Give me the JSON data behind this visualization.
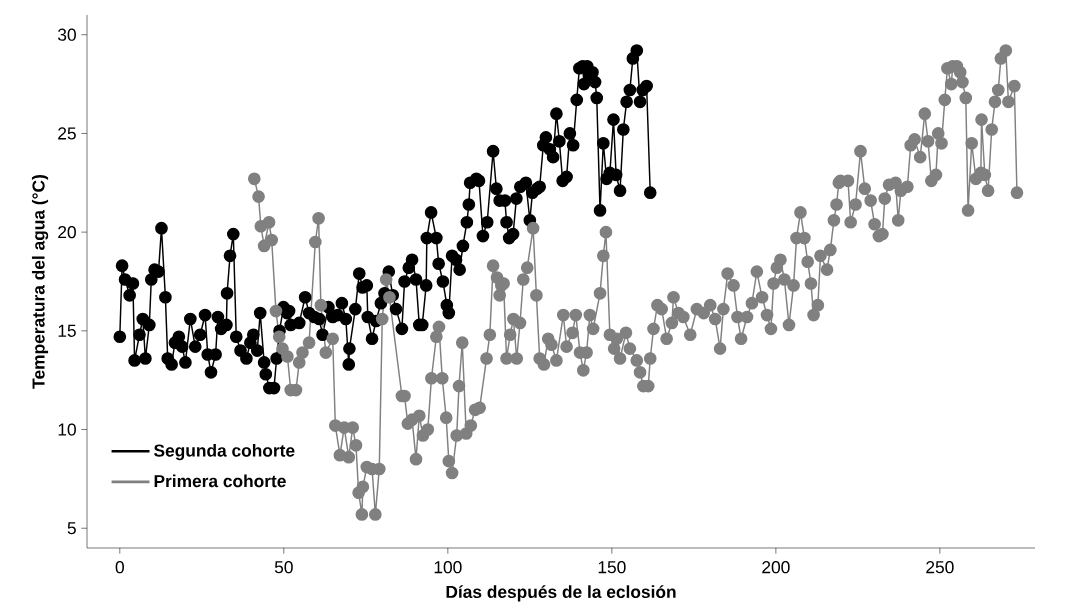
{
  "chart_data": {
    "type": "line",
    "xlabel": "Días después de la eclosión",
    "ylabel": "Temperatura del agua (°C)",
    "xlim": [
      -10,
      279
    ],
    "ylim": [
      4,
      31
    ],
    "xticks": [
      0,
      50,
      100,
      150,
      200,
      250
    ],
    "yticks": [
      5,
      10,
      15,
      20,
      25,
      30
    ],
    "grid": false,
    "legend": "bottom left",
    "marker": "circle",
    "line_style": "solid",
    "series": [
      {
        "name": "Segunda cohorte",
        "color": "#000000",
        "x": [
          0,
          0.7,
          1.6,
          3,
          4,
          4.5,
          6,
          7,
          7.8,
          9,
          9.6,
          10.6,
          11.8,
          12.7,
          13.9,
          14.6,
          15.8,
          16.8,
          18,
          19,
          20,
          21.5,
          23,
          24.5,
          26,
          26.8,
          27.8,
          29.2,
          29.9,
          30.9,
          32.5,
          32.7,
          33.6,
          34.6,
          35.5,
          36.8,
          38.6,
          39.8,
          40.7,
          41.9,
          42.8,
          44,
          44.5,
          45.6,
          47,
          47.8,
          48.7,
          49.9,
          51,
          51.6,
          52.1,
          54.7,
          56.5,
          57.7,
          59.3,
          60.8,
          61.8,
          63.6,
          64.9,
          66.4,
          67.7,
          68.9,
          69.8,
          70,
          71.8,
          73,
          74,
          75.3,
          75.6,
          76.9,
          78.1,
          79.6,
          80.7,
          82,
          83.2,
          84.2,
          86,
          86.8,
          88.1,
          89.1,
          90.3,
          91.3,
          92.2,
          93.4,
          93.6,
          94.9,
          96.5,
          97.2,
          98.5,
          99.7,
          100.3,
          101.3,
          102.5,
          103.6,
          104.6,
          105.8,
          106.4,
          106.8,
          108.7,
          109.5,
          110.7,
          112,
          113.8,
          114.8,
          115.8,
          117.4,
          117.9,
          118.7,
          119.9,
          120.9,
          122.1,
          123.8,
          125,
          125.8,
          127.2,
          128,
          129.1,
          129.9,
          131.1,
          132.1,
          133.1,
          134,
          135,
          136.2,
          137.2,
          138.2,
          139.3,
          140.1,
          141.1,
          141.5,
          142.5,
          143.1,
          144.1,
          144.9,
          145.4,
          146.4,
          147.4,
          148.4,
          149.4,
          150.5,
          151.3,
          152.5,
          153.5,
          154.5,
          155.5,
          156.4,
          157.6,
          158.6,
          159.4,
          160.6,
          161.7
        ],
        "values": [
          14.7,
          18.3,
          17.6,
          16.8,
          17.4,
          13.5,
          14.8,
          15.6,
          13.6,
          15.3,
          17.6,
          18.1,
          18.0,
          20.2,
          16.7,
          13.6,
          13.3,
          14.4,
          14.7,
          14.2,
          13.4,
          15.6,
          14.2,
          14.8,
          15.8,
          13.8,
          12.9,
          13.8,
          15.7,
          15.1,
          15.3,
          16.9,
          18.8,
          19.9,
          14.7,
          14.0,
          13.6,
          14.4,
          14.8,
          14.0,
          15.9,
          13.4,
          12.8,
          12.1,
          12.1,
          13.6,
          15.0,
          16.2,
          15.9,
          16.0,
          15.3,
          15.4,
          16.7,
          15.9,
          15.7,
          15.6,
          14.8,
          16.2,
          15.7,
          15.8,
          16.4,
          15.6,
          13.3,
          14.1,
          16.1,
          17.9,
          17.2,
          17.3,
          15.7,
          14.6,
          15.5,
          16.4,
          16.9,
          18.0,
          16.8,
          16.1,
          15.1,
          17.5,
          18.2,
          18.6,
          17.6,
          15.3,
          15.3,
          17.3,
          19.7,
          21.0,
          19.7,
          18.4,
          17.5,
          16.3,
          15.9,
          18.8,
          18.6,
          18.1,
          19.3,
          20.5,
          21.4,
          22.5,
          22.7,
          22.6,
          19.8,
          20.5,
          24.1,
          22.2,
          21.6,
          21.6,
          20.5,
          19.7,
          19.9,
          21.7,
          22.3,
          22.5,
          20.6,
          22.0,
          22.2,
          22.3,
          24.4,
          24.8,
          24.2,
          23.8,
          26.0,
          24.6,
          22.6,
          22.8,
          25.0,
          24.4,
          26.7,
          28.3,
          28.4,
          27.5,
          28.4,
          28.0,
          28.1,
          27.6,
          26.8,
          21.1,
          24.5,
          22.7,
          23.0,
          25.7,
          22.9,
          22.1,
          25.2,
          26.6,
          27.2,
          28.8,
          29.2,
          26.6,
          27.2,
          27.4,
          22.0
        ]
      },
      {
        "name": "Primera cohorte",
        "color": "#808080",
        "x": [
          41,
          42.3,
          43,
          44,
          45.5,
          46.3,
          47.6,
          48.6,
          49.6,
          51.1,
          52.1,
          53.7,
          54.7,
          55.7,
          57.7,
          59.6,
          60.6,
          61.3,
          62.8,
          64.9,
          65.7,
          67.1,
          68.4,
          69.8,
          71,
          72,
          72.8,
          73.8,
          74.1,
          75.3,
          76.9,
          77.9,
          79.1,
          80,
          81.2,
          82.2,
          86,
          86.8,
          87.8,
          89.1,
          90.3,
          91.3,
          92.4,
          93.9,
          95,
          96.5,
          97.3,
          98.3,
          99.5,
          100.3,
          101.3,
          102.7,
          103.4,
          104.4,
          105.6,
          107,
          108.3,
          109.7,
          111.8,
          112.8,
          113.8,
          115,
          115.8,
          116.3,
          117,
          117.9,
          119,
          120,
          121,
          122,
          123,
          124.2,
          126,
          127,
          128,
          129.3,
          130.6,
          131.6,
          133.1,
          135.2,
          136.2,
          138,
          139,
          140.3,
          141.3,
          142.3,
          143.3,
          144.3,
          146.4,
          147.4,
          148.2,
          149.4,
          150.7,
          151.5,
          152.5,
          154.3,
          155.5,
          157.6,
          158.6,
          159.6,
          161.1,
          161.7,
          162.7,
          163.9,
          165.2,
          166.7,
          168.3,
          168.8,
          170.3,
          171.8,
          173.9,
          175.9,
          178,
          180,
          181.5,
          183,
          184,
          185.3,
          187.1,
          188.3,
          189.4,
          191.2,
          192.7,
          194.2,
          195.8,
          197.3,
          198.5,
          199.3,
          200.3,
          201.4,
          202.6,
          204,
          205.4,
          206.3,
          207.5,
          208.7,
          209.7,
          210.7,
          211.5,
          212.8,
          213.6,
          215.6,
          216.6,
          217.7,
          218.5,
          219.2,
          219.7,
          222,
          222.8,
          224.3,
          225.8,
          227.1,
          228.9,
          230.1,
          231.4,
          232.5,
          233.2,
          234.5,
          236.5,
          237.3,
          238.1,
          240.1,
          241.1,
          242.3,
          244,
          245.4,
          246.4,
          247.4,
          248.8,
          249.5,
          250.5,
          251.5,
          252.3,
          253.5,
          253.9,
          255.2,
          256.2,
          256.9,
          257.9,
          258.6,
          259.7,
          261,
          262.5,
          262.7,
          263.7,
          264.7,
          265.8,
          266.8,
          267.8,
          268.6,
          270.1,
          270.9,
          272.7,
          273.5
        ],
        "values": [
          22.7,
          21.8,
          20.3,
          19.3,
          20.5,
          19.6,
          16.0,
          14.7,
          14.1,
          13.7,
          12.0,
          12.0,
          13.4,
          13.9,
          14.4,
          19.5,
          20.7,
          16.3,
          13.9,
          14.6,
          10.2,
          8.7,
          10.1,
          8.6,
          10.1,
          9.2,
          6.8,
          5.7,
          7.1,
          8.1,
          8.0,
          5.7,
          8.0,
          15.6,
          17.6,
          16.7,
          11.7,
          11.7,
          10.3,
          10.5,
          8.5,
          10.7,
          9.7,
          10.0,
          12.6,
          14.7,
          15.2,
          12.6,
          10.6,
          8.4,
          7.8,
          9.7,
          12.2,
          14.4,
          9.8,
          10.2,
          11.0,
          11.1,
          13.6,
          14.8,
          18.3,
          17.7,
          16.8,
          17.3,
          17.4,
          13.6,
          14.8,
          15.6,
          13.6,
          15.4,
          17.6,
          18.2,
          20.2,
          16.8,
          13.6,
          13.3,
          14.6,
          14.3,
          13.5,
          15.8,
          14.2,
          14.9,
          15.8,
          13.9,
          13.0,
          13.9,
          15.8,
          15.1,
          16.9,
          18.8,
          20.0,
          14.8,
          14.1,
          14.6,
          13.6,
          14.9,
          14.1,
          13.5,
          12.9,
          12.2,
          12.2,
          13.6,
          15.1,
          16.3,
          16.1,
          14.6,
          15.4,
          16.7,
          15.9,
          15.7,
          14.8,
          16.1,
          15.9,
          16.3,
          15.6,
          14.1,
          16.1,
          17.9,
          17.3,
          15.7,
          14.6,
          15.7,
          16.4,
          18.0,
          16.7,
          15.8,
          15.1,
          17.4,
          18.2,
          18.6,
          17.6,
          15.3,
          17.3,
          19.7,
          21.0,
          19.7,
          18.5,
          17.4,
          15.8,
          16.3,
          18.8,
          18.1,
          19.1,
          20.6,
          21.4,
          22.5,
          22.6,
          22.6,
          20.5,
          21.4,
          24.1,
          22.2,
          21.6,
          20.4,
          19.8,
          19.9,
          21.7,
          22.4,
          22.5,
          20.6,
          22.1,
          22.3,
          24.4,
          24.7,
          23.8,
          26.0,
          24.6,
          22.6,
          22.9,
          25.0,
          24.5,
          26.7,
          28.3,
          27.5,
          28.4,
          28.4,
          28.1,
          27.6,
          26.8,
          21.1,
          24.5,
          22.7,
          23.0,
          25.7,
          22.9,
          22.1,
          25.2,
          26.6,
          27.2,
          28.8,
          29.2,
          26.6,
          27.4,
          22.0
        ]
      }
    ]
  }
}
